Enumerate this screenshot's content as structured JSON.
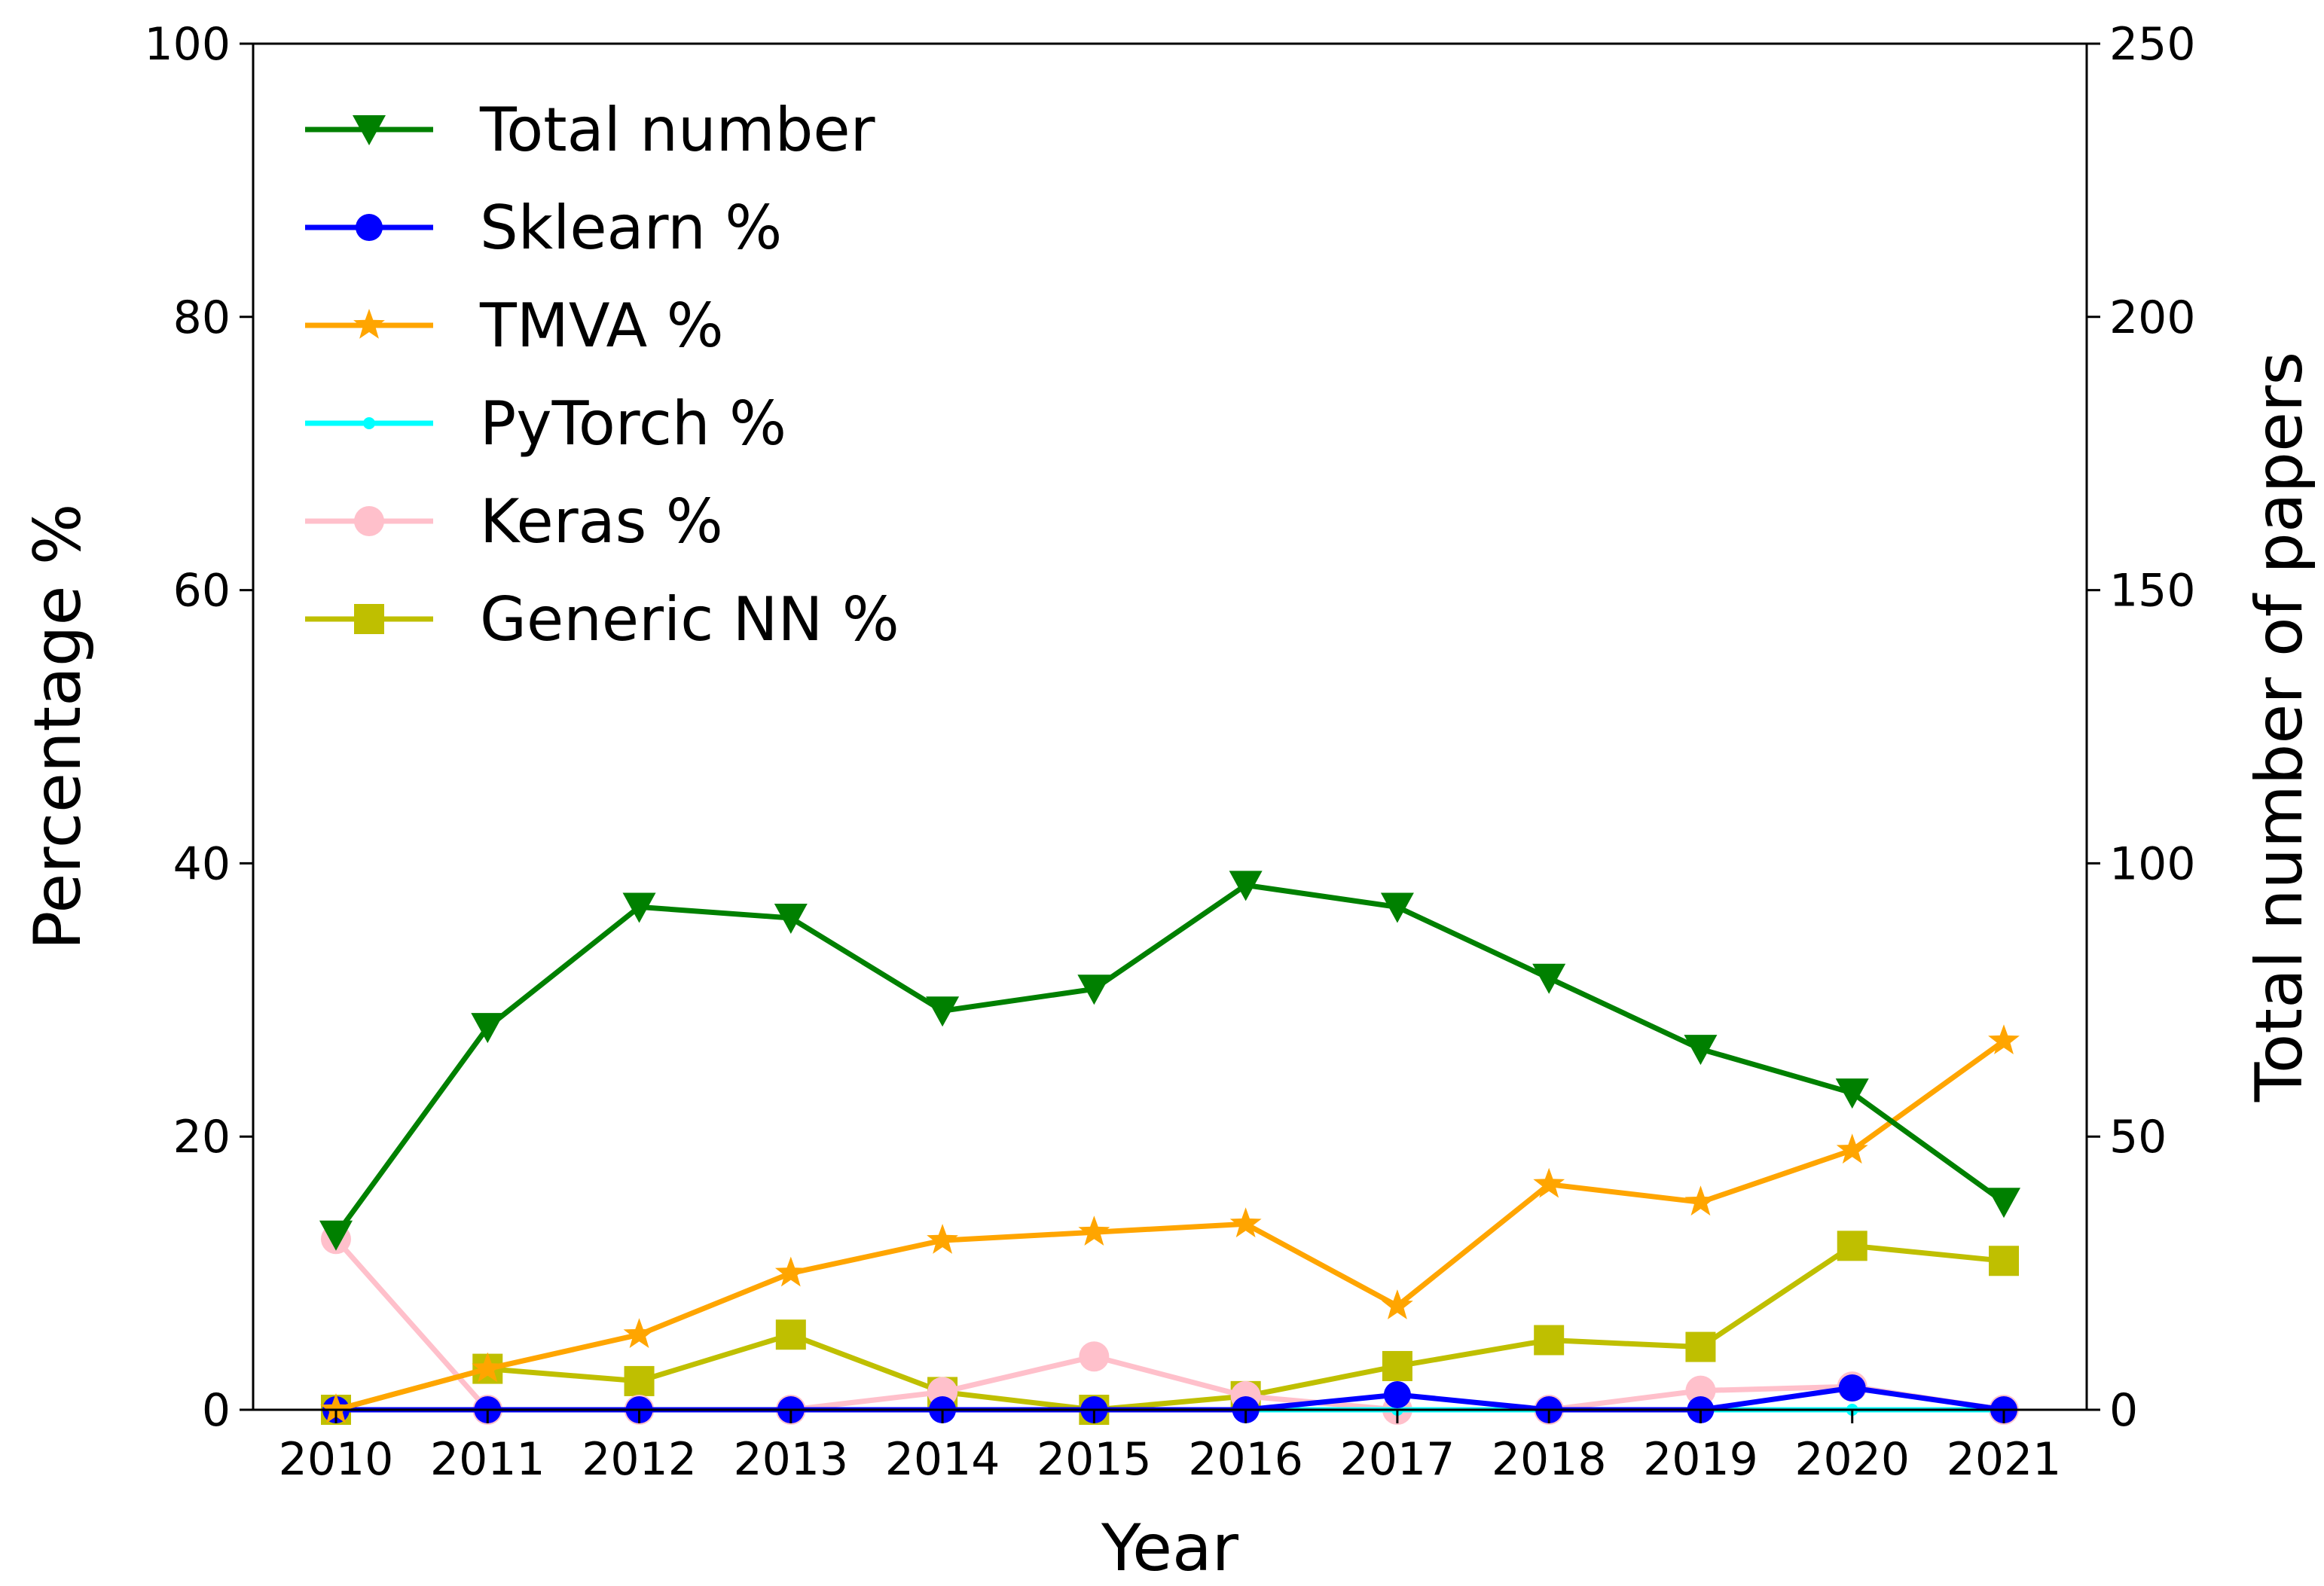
{
  "chart_data": {
    "type": "line",
    "title": "",
    "xlabel": "Year",
    "ylabel": "Percentage %",
    "y2label": "Total number of papers",
    "categories": [
      "2010",
      "2011",
      "2012",
      "2013",
      "2014",
      "2015",
      "2016",
      "2017",
      "2018",
      "2019",
      "2020",
      "2021"
    ],
    "ylim": [
      0,
      100
    ],
    "y2lim": [
      0,
      250
    ],
    "yticks": [
      "0",
      "20",
      "40",
      "60",
      "80",
      "100"
    ],
    "y2ticks": [
      "0",
      "50",
      "100",
      "150",
      "200",
      "250"
    ],
    "legend_position": "top-left",
    "series": [
      {
        "name": "Total number",
        "axis": "right",
        "color": "#008000",
        "marker": "triangle-down",
        "values": [
          32,
          70,
          92,
          90,
          73,
          77,
          96,
          92,
          79,
          66,
          58,
          38
        ]
      },
      {
        "name": "Sklearn %",
        "axis": "left",
        "color": "#0000ff",
        "marker": "circle",
        "values": [
          0,
          0,
          0,
          0,
          0,
          0,
          0,
          1.1,
          0,
          0,
          1.6,
          0
        ]
      },
      {
        "name": "TMVA %",
        "axis": "left",
        "color": "#ffa500",
        "marker": "star",
        "values": [
          0,
          3.0,
          5.5,
          10.0,
          12.4,
          13.0,
          13.6,
          7.6,
          16.5,
          15.2,
          19.0,
          27.0
        ]
      },
      {
        "name": "PyTorch %",
        "axis": "left",
        "color": "#00ffff",
        "marker": "point",
        "values": [
          0,
          0,
          0,
          0,
          0,
          0,
          0,
          0,
          0,
          0,
          0,
          0
        ]
      },
      {
        "name": "Keras %",
        "axis": "left",
        "color": "#ffc0cb",
        "marker": "circle-large",
        "values": [
          12.5,
          0,
          0,
          0,
          1.3,
          3.9,
          1.0,
          0,
          0,
          1.4,
          1.7,
          0
        ]
      },
      {
        "name": "Generic NN %",
        "axis": "left",
        "color": "#bfbf00",
        "marker": "square",
        "values": [
          0,
          3.0,
          2.1,
          5.5,
          1.3,
          0,
          1.0,
          3.2,
          5.1,
          4.6,
          12.0,
          10.9
        ]
      }
    ]
  }
}
